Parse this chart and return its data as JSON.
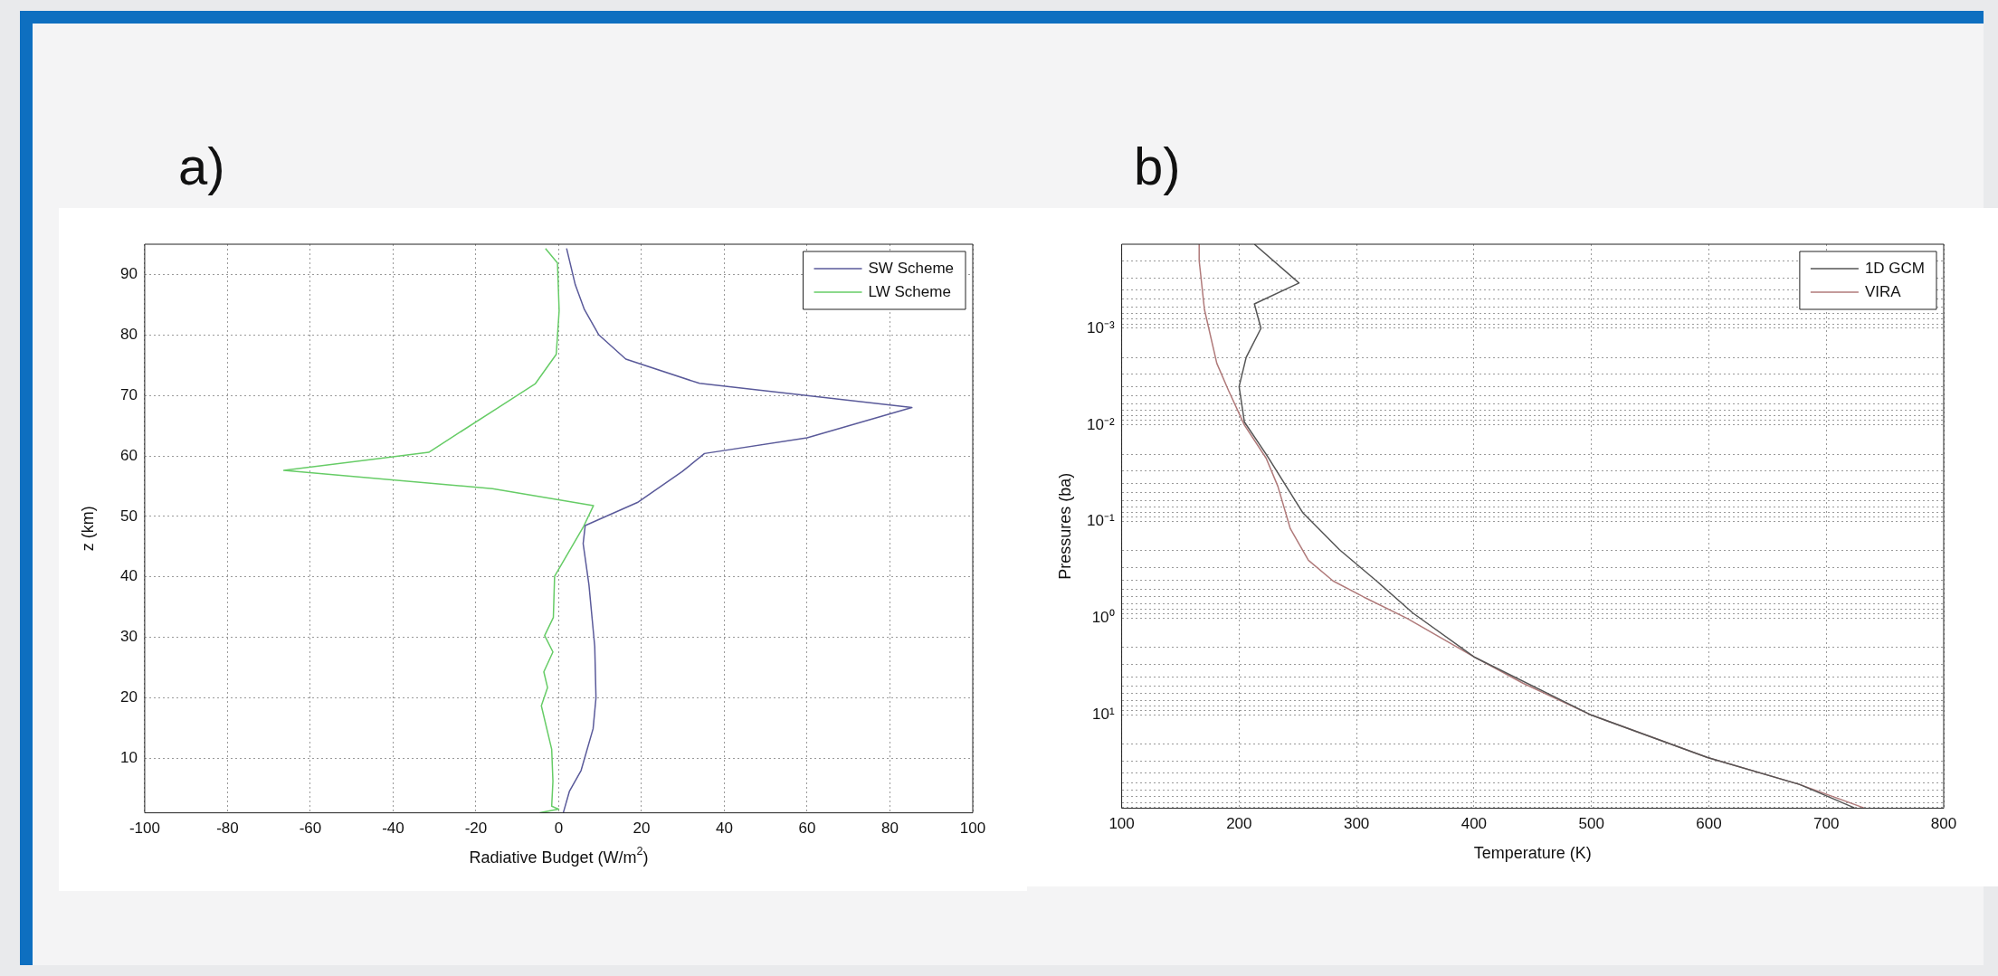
{
  "chart_data": [
    {
      "type": "line",
      "title": "a)",
      "xlabel": "Radiative Budget (W/m$^{2}$)",
      "ylabel": "z (km)",
      "xlim": [
        -100,
        100
      ],
      "ylim": [
        1,
        95
      ],
      "xticks": [
        -100,
        -80,
        -60,
        -40,
        -20,
        0,
        20,
        40,
        60,
        80,
        100
      ],
      "yticks": [
        10,
        20,
        30,
        40,
        50,
        60,
        70,
        80,
        90
      ],
      "grid": true,
      "legend": "top right",
      "series": [
        {
          "name": "SW Scheme",
          "color": "#5a5a9a",
          "x": [
            1.9,
            4,
            6.2,
            9.7,
            16.2,
            34,
            85.3,
            60,
            35.2,
            29.8,
            19,
            6.4,
            5.9,
            7.3,
            8.7,
            9,
            8.3,
            5.4,
            2.6,
            1.1
          ],
          "values": [
            94.3,
            88.3,
            84.2,
            80,
            76,
            72,
            68,
            63,
            60.4,
            57.4,
            52.3,
            48.5,
            45.5,
            38.7,
            28.5,
            20,
            14.9,
            8,
            4.6,
            1
          ]
        },
        {
          "name": "LW Scheme",
          "color": "#66cc66",
          "x": [
            -3.2,
            -0.3,
            0.1,
            -0.6,
            -5.7,
            -14.6,
            -31.4,
            -66.4,
            -16,
            8.4,
            5.9,
            -1,
            -1.3,
            -3.4,
            -1.4,
            -3.6,
            -2.7,
            -4.2,
            -1.7,
            -1.4,
            -1.7,
            0,
            -4.6
          ],
          "values": [
            94.3,
            91.9,
            84,
            76.8,
            71.9,
            68,
            60.6,
            57.6,
            54.6,
            51.8,
            48.2,
            40.1,
            33.3,
            30.3,
            27.6,
            24.3,
            21.7,
            18.7,
            11.5,
            6.2,
            2.1,
            1.6,
            1
          ]
        }
      ]
    },
    {
      "type": "line",
      "title": "b)",
      "xlabel": "Temperature (K)",
      "ylabel": "Pressures (ba)",
      "xlim": [
        100,
        800
      ],
      "ylim": [
        92,
        0.000135
      ],
      "xticks": [
        100,
        200,
        300,
        400,
        500,
        600,
        700,
        800
      ],
      "log": "y",
      "yticks": [
        {
          "value": 0.0002,
          "label": null
        },
        {
          "value": 0.0003,
          "label": null
        },
        {
          "value": 0.0004,
          "label": null
        },
        {
          "value": 0.0005,
          "label": null
        },
        {
          "value": 0.0006,
          "label": null
        },
        {
          "value": 0.0007,
          "label": null
        },
        {
          "value": 0.0008,
          "label": null
        },
        {
          "value": 0.0009,
          "label": null
        },
        {
          "value": 0.001,
          "label": "10⁻³"
        },
        {
          "value": 0.002,
          "label": null
        },
        {
          "value": 0.003,
          "label": null
        },
        {
          "value": 0.004,
          "label": null
        },
        {
          "value": 0.005,
          "label": null
        },
        {
          "value": 0.006,
          "label": null
        },
        {
          "value": 0.007,
          "label": null
        },
        {
          "value": 0.008,
          "label": null
        },
        {
          "value": 0.009,
          "label": null
        },
        {
          "value": 0.01,
          "label": "10⁻²"
        },
        {
          "value": 0.02,
          "label": null
        },
        {
          "value": 0.03,
          "label": null
        },
        {
          "value": 0.04,
          "label": null
        },
        {
          "value": 0.05,
          "label": null
        },
        {
          "value": 0.06,
          "label": null
        },
        {
          "value": 0.07,
          "label": null
        },
        {
          "value": 0.08,
          "label": null
        },
        {
          "value": 0.09,
          "label": null
        },
        {
          "value": 0.1,
          "label": "10⁻¹"
        },
        {
          "value": 0.2,
          "label": null
        },
        {
          "value": 0.3,
          "label": null
        },
        {
          "value": 0.4,
          "label": null
        },
        {
          "value": 0.5,
          "label": null
        },
        {
          "value": 0.6,
          "label": null
        },
        {
          "value": 0.7,
          "label": null
        },
        {
          "value": 0.8,
          "label": null
        },
        {
          "value": 0.9,
          "label": null
        },
        {
          "value": 1,
          "label": "10⁰"
        },
        {
          "value": 2,
          "label": null
        },
        {
          "value": 3,
          "label": null
        },
        {
          "value": 4,
          "label": null
        },
        {
          "value": 5,
          "label": null
        },
        {
          "value": 6,
          "label": null
        },
        {
          "value": 7,
          "label": null
        },
        {
          "value": 8,
          "label": null
        },
        {
          "value": 9,
          "label": null
        },
        {
          "value": 10,
          "label": "10¹"
        },
        {
          "value": 20,
          "label": null
        },
        {
          "value": 30,
          "label": null
        },
        {
          "value": 40,
          "label": null
        },
        {
          "value": 50,
          "label": null
        },
        {
          "value": 60,
          "label": null
        },
        {
          "value": 70,
          "label": null
        },
        {
          "value": 80,
          "label": null
        },
        {
          "value": 90,
          "label": null
        }
      ],
      "grid": true,
      "legend": "top right",
      "series": [
        {
          "name": "1D GCM",
          "color": "#555555",
          "x": [
            213,
            251,
            213,
            218.6,
            206,
            200,
            204.5,
            223,
            254,
            285.5,
            317,
            348,
            400,
            500,
            599,
            677,
            724
          ],
          "values": [
            0.000135,
            0.00034,
            0.00056,
            0.001,
            0.002,
            0.004,
            0.0093,
            0.02,
            0.08,
            0.195,
            0.41,
            0.88,
            2.5,
            10,
            27.5,
            52,
            91
          ]
        },
        {
          "name": "VIRA",
          "color": "#b07a7a",
          "x": [
            166,
            166,
            170.5,
            181,
            191,
            204.5,
            223,
            233,
            243.6,
            259,
            280,
            306,
            343,
            400,
            442,
            500,
            599,
            677,
            732
          ],
          "values": [
            0.000135,
            0.0002,
            0.00064,
            0.0023,
            0.0044,
            0.01,
            0.022,
            0.043,
            0.118,
            0.25,
            0.41,
            0.6,
            1,
            2.5,
            4.7,
            10,
            27.5,
            52,
            91
          ]
        }
      ]
    }
  ]
}
